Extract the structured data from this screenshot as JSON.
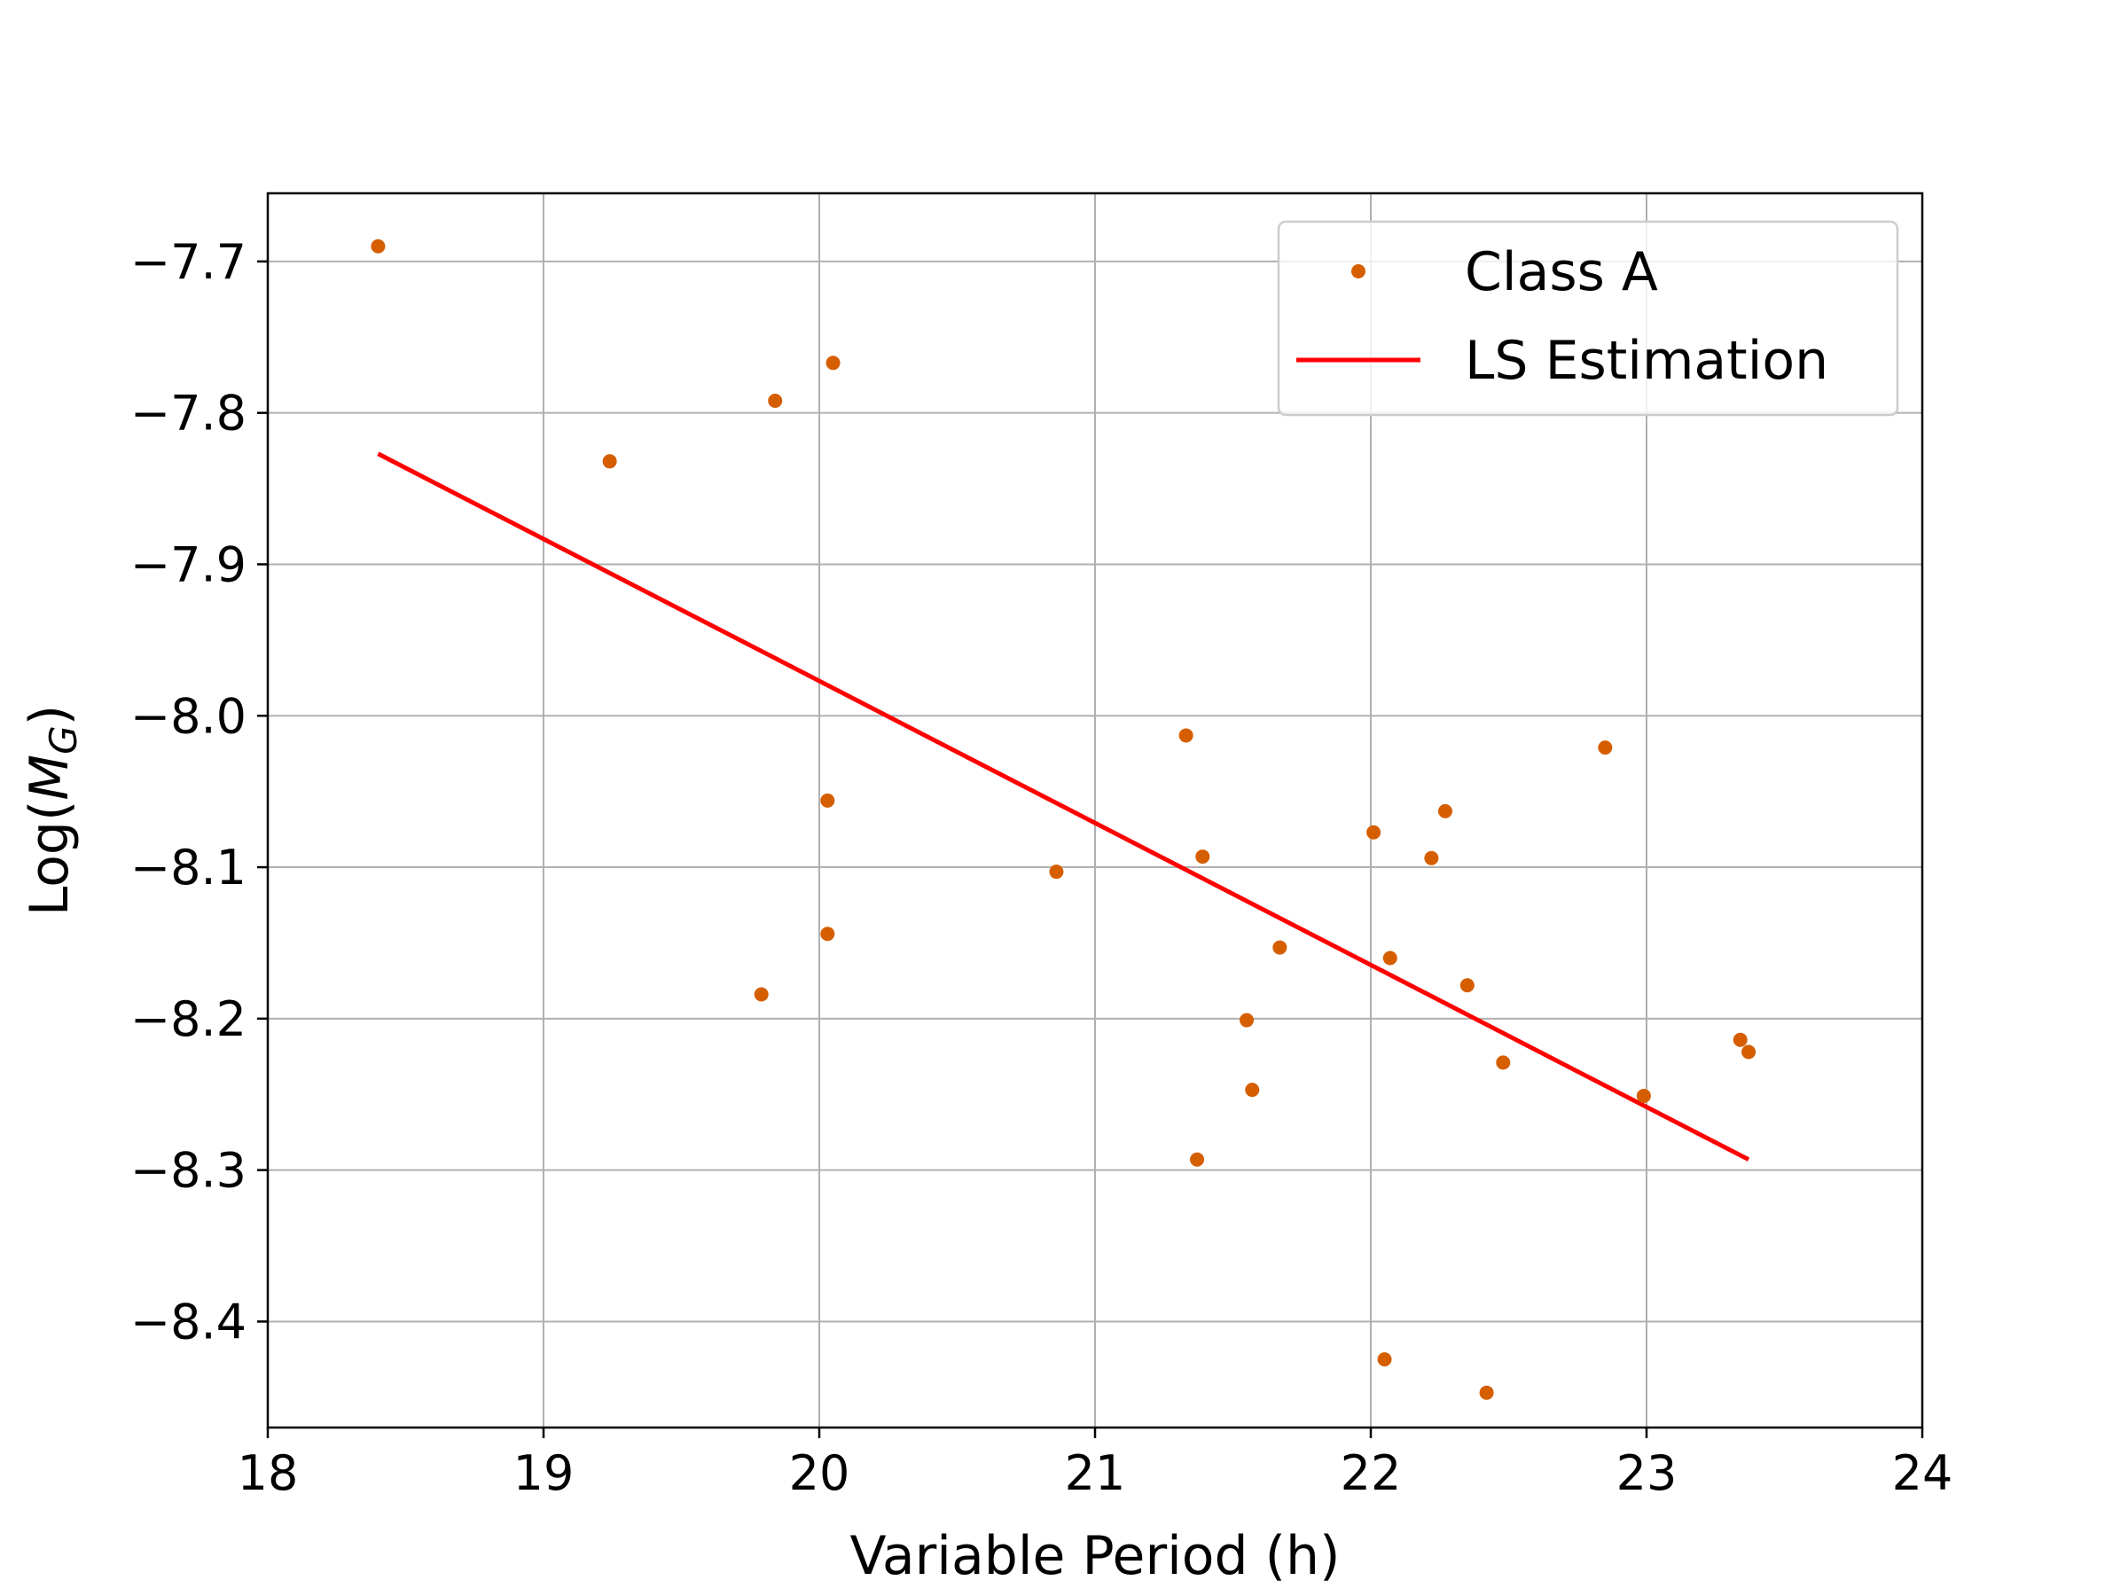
{
  "chart_data": {
    "type": "scatter",
    "xlabel": "Variable Period (h)",
    "ylabel_prefix": "Log(",
    "ylabel_var": "M",
    "ylabel_sub": "G",
    "ylabel_suffix": ")",
    "xlim": [
      18,
      24
    ],
    "ylim": [
      -8.47,
      -7.655
    ],
    "xticks": [
      18,
      19,
      20,
      21,
      22,
      23,
      24
    ],
    "yticks": [
      -7.7,
      -7.8,
      -7.9,
      -8.0,
      -8.1,
      -8.2,
      -8.3,
      -8.4
    ],
    "ytick_labels": [
      "−7.7",
      "−7.8",
      "−7.9",
      "−8.0",
      "−8.1",
      "−8.2",
      "−8.3",
      "−8.4"
    ],
    "grid": true,
    "legend_position": "top-right",
    "series": [
      {
        "name": "Class A",
        "kind": "scatter",
        "color": "#d55e00",
        "points": [
          [
            18.4,
            -7.69
          ],
          [
            19.24,
            -7.832
          ],
          [
            19.84,
            -7.792
          ],
          [
            20.05,
            -7.767
          ],
          [
            19.79,
            -8.184
          ],
          [
            20.03,
            -8.056
          ],
          [
            20.03,
            -8.144
          ],
          [
            20.86,
            -8.103
          ],
          [
            21.33,
            -8.013
          ],
          [
            21.37,
            -8.293
          ],
          [
            21.39,
            -8.093
          ],
          [
            21.55,
            -8.201
          ],
          [
            21.57,
            -8.247
          ],
          [
            21.67,
            -8.153
          ],
          [
            22.01,
            -8.077
          ],
          [
            22.05,
            -8.425
          ],
          [
            22.07,
            -8.16
          ],
          [
            22.22,
            -8.094
          ],
          [
            22.27,
            -8.063
          ],
          [
            22.35,
            -8.178
          ],
          [
            22.42,
            -8.447
          ],
          [
            22.48,
            -8.229
          ],
          [
            22.85,
            -8.021
          ],
          [
            22.99,
            -8.251
          ],
          [
            23.34,
            -8.214
          ],
          [
            23.37,
            -8.222
          ]
        ]
      },
      {
        "name": "LS Estimation",
        "kind": "line",
        "color": "#ff0000",
        "points": [
          [
            18.4,
            -7.827
          ],
          [
            23.37,
            -8.293
          ]
        ]
      }
    ]
  }
}
